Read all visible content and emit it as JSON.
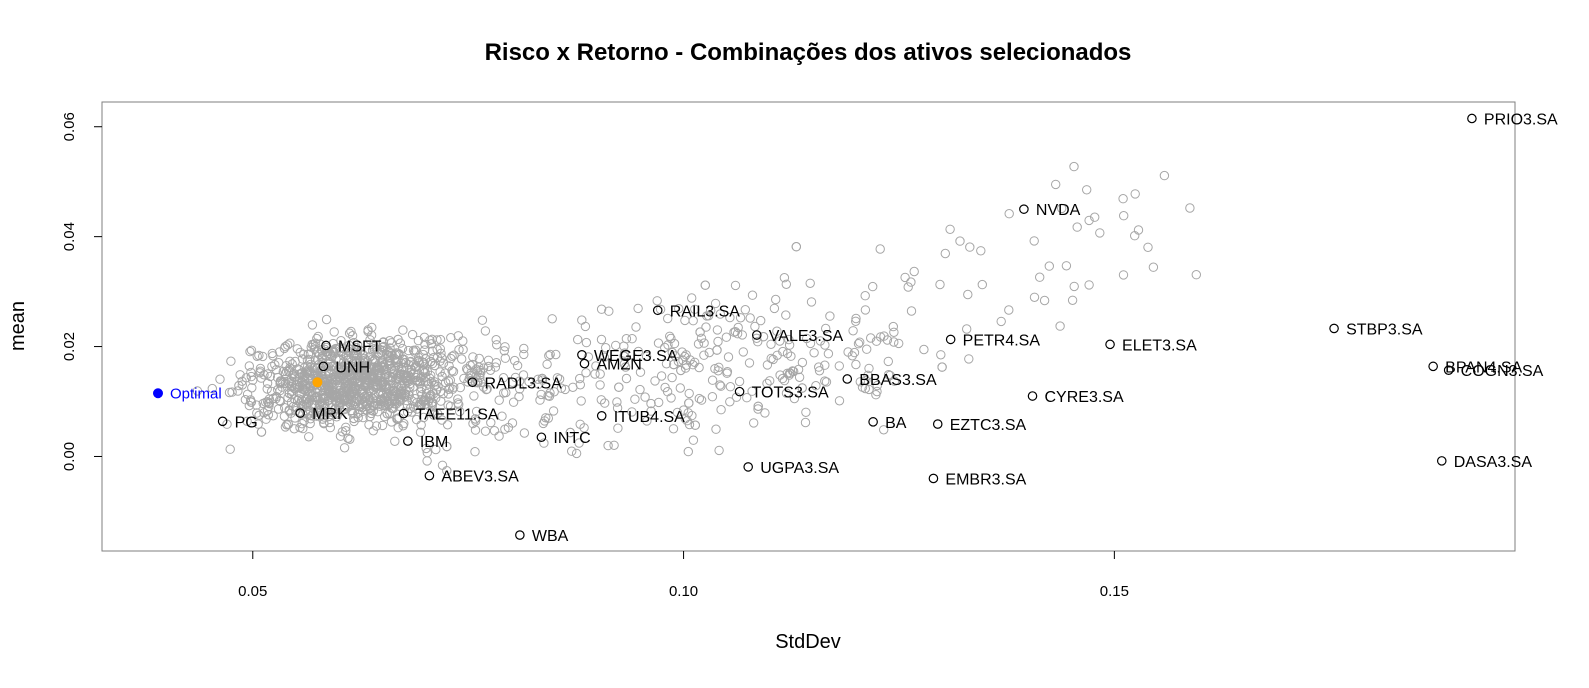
{
  "chart_data": {
    "type": "scatter",
    "title": "Risco x Retorno - Combinações dos ativos selecionados",
    "xlabel": "StdDev",
    "ylabel": "mean",
    "xlim": [
      0.0325,
      0.1965
    ],
    "ylim": [
      -0.0172,
      0.0645
    ],
    "x_ticks": [
      0.05,
      0.1,
      0.15
    ],
    "x_tick_labels": [
      "0.05",
      "0.10",
      "0.15"
    ],
    "y_ticks": [
      0.0,
      0.02,
      0.04,
      0.06
    ],
    "y_tick_labels": [
      "0.00",
      "0.02",
      "0.04",
      "0.06"
    ],
    "grid": false,
    "colors": {
      "portfolio_points": "#a6a6a6",
      "asset_points": "#000000",
      "optimal": "#0000ff",
      "highlight": "#ffa500"
    },
    "assets": [
      {
        "label": "PRIO3.SA",
        "x": 0.1915,
        "y": 0.0615
      },
      {
        "label": "NVDA",
        "x": 0.1395,
        "y": 0.045
      },
      {
        "label": "STBP3.SA",
        "x": 0.1755,
        "y": 0.0233
      },
      {
        "label": "RAIL3.SA",
        "x": 0.097,
        "y": 0.0266
      },
      {
        "label": "VALE3.SA",
        "x": 0.1085,
        "y": 0.0221
      },
      {
        "label": "PETR4.SA",
        "x": 0.131,
        "y": 0.0213
      },
      {
        "label": "ELET3.SA",
        "x": 0.1495,
        "y": 0.0204
      },
      {
        "label": "MSFT",
        "x": 0.0585,
        "y": 0.0202
      },
      {
        "label": "WEGE3.SA",
        "x": 0.0882,
        "y": 0.0185
      },
      {
        "label": "AMZN",
        "x": 0.0885,
        "y": 0.0169
      },
      {
        "label": "UNH",
        "x": 0.0582,
        "y": 0.0164
      },
      {
        "label": "BPAN4.SA",
        "x": 0.187,
        "y": 0.0164
      },
      {
        "label": "COGN3.SA",
        "x": 0.1888,
        "y": 0.0157
      },
      {
        "label": "RADL3.SA",
        "x": 0.0755,
        "y": 0.0135
      },
      {
        "label": "BBAS3.SA",
        "x": 0.119,
        "y": 0.0141
      },
      {
        "label": "TOTS3.SA",
        "x": 0.1065,
        "y": 0.0118
      },
      {
        "label": "CYRE3.SA",
        "x": 0.1405,
        "y": 0.011
      },
      {
        "label": "MRK",
        "x": 0.0555,
        "y": 0.0079
      },
      {
        "label": "TAEE11.SA",
        "x": 0.0675,
        "y": 0.0078
      },
      {
        "label": "ITUB4.SA",
        "x": 0.0905,
        "y": 0.0074
      },
      {
        "label": "PG",
        "x": 0.0465,
        "y": 0.0064
      },
      {
        "label": "BA",
        "x": 0.122,
        "y": 0.0063
      },
      {
        "label": "EZTC3.SA",
        "x": 0.1295,
        "y": 0.0059
      },
      {
        "label": "INTC",
        "x": 0.0835,
        "y": 0.0035
      },
      {
        "label": "IBM",
        "x": 0.068,
        "y": 0.0028
      },
      {
        "label": "UGPA3.SA",
        "x": 0.1075,
        "y": -0.0019
      },
      {
        "label": "DASA3.SA",
        "x": 0.188,
        "y": -0.0008
      },
      {
        "label": "ABEV3.SA",
        "x": 0.0705,
        "y": -0.0035
      },
      {
        "label": "EMBR3.SA",
        "x": 0.129,
        "y": -0.004
      },
      {
        "label": "WBA",
        "x": 0.081,
        "y": -0.0143
      }
    ],
    "optimal": {
      "label": "Optimal",
      "x": 0.039,
      "y": 0.0115
    },
    "highlight_point": {
      "x": 0.0575,
      "y": 0.0135
    },
    "portfolio_cloud": {
      "point_count": 1500,
      "description_of_spread": "random portfolio combinations: dense between StdDev 0.04-0.08 and mean 0.0-0.025, thinning toward higher StdDev up to ~0.16 and mean up to ~0.053"
    }
  }
}
